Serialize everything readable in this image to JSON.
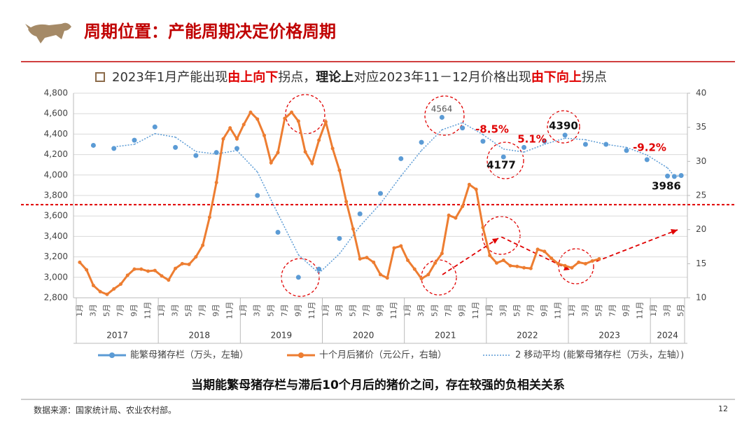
{
  "header": {
    "title": "周期位置：产能周期决定价格周期"
  },
  "chart_data": {
    "type": "line",
    "subtitle": [
      {
        "text": "2023年1月产能出现",
        "color": "#333333",
        "bold": false
      },
      {
        "text": "由上向下",
        "color": "#e00000",
        "bold": true
      },
      {
        "text": "拐点，",
        "color": "#333333",
        "bold": false
      },
      {
        "text": "理论上",
        "color": "#222222",
        "bold": true
      },
      {
        "text": "对应2023年11－12月价格出现",
        "color": "#333333",
        "bold": false
      },
      {
        "text": "由下向上",
        "color": "#e00000",
        "bold": true
      },
      {
        "text": "拐点",
        "color": "#333333",
        "bold": false
      }
    ],
    "categories": [
      "1月",
      null,
      "3月",
      null,
      "5月",
      null,
      "7月",
      null,
      "9月",
      null,
      "11月",
      null,
      "1月",
      null,
      "3月",
      null,
      "5月",
      null,
      "7月",
      null,
      "9月",
      null,
      "11月",
      null,
      "1月",
      null,
      "3月",
      null,
      "5月",
      null,
      "7月",
      null,
      "9月",
      null,
      "11月",
      null,
      "1月",
      null,
      "3月",
      null,
      "5月",
      null,
      "7月",
      null,
      "9月",
      null,
      "11月",
      null,
      "1月",
      null,
      "3月",
      null,
      "5月",
      null,
      "7月",
      null,
      "9月",
      null,
      "11月",
      null,
      "1月",
      null,
      "3月",
      null,
      "5月",
      null,
      "7月",
      null,
      "9月",
      null,
      "11月",
      null,
      "1月",
      null,
      "3月",
      null,
      "5月",
      null,
      "7月",
      null,
      "9月",
      null,
      "11月",
      null,
      "1月",
      null,
      "3月",
      null,
      "5月"
    ],
    "years": [
      "2017",
      "2018",
      "2019",
      "2020",
      "2021",
      "2022",
      "2023",
      "2024"
    ],
    "series": [
      {
        "name": "能繁母猪存栏（万头，左轴）",
        "color": "#5b9bd5",
        "style": "dots",
        "values": [
          null,
          null,
          4290,
          null,
          null,
          4260,
          null,
          null,
          4340,
          null,
          null,
          4470,
          null,
          null,
          4270,
          null,
          null,
          4190,
          null,
          null,
          4220,
          null,
          null,
          4260,
          null,
          null,
          3800,
          null,
          null,
          3440,
          null,
          null,
          3000,
          null,
          null,
          3080,
          null,
          null,
          3380,
          null,
          null,
          3620,
          null,
          null,
          3820,
          null,
          null,
          4160,
          null,
          null,
          4320,
          null,
          null,
          4564,
          null,
          null,
          4460,
          null,
          null,
          4330,
          null,
          null,
          4177,
          null,
          null,
          4270,
          null,
          null,
          4330,
          null,
          null,
          4390,
          null,
          null,
          4300,
          null,
          null,
          4300,
          null,
          null,
          4240,
          null,
          null,
          4150,
          null,
          null,
          3990,
          3986,
          3995
        ]
      },
      {
        "name": "十个月后猪价（元公斤，右轴）",
        "color": "#ed7d31",
        "style": "line",
        "axis": "y2",
        "values": [
          15.2,
          14.1,
          11.8,
          10.9,
          10.5,
          11.3,
          12.0,
          13.3,
          14.2,
          14.2,
          13.9,
          14.0,
          13.2,
          12.6,
          14.3,
          15.0,
          14.9,
          16.0,
          17.7,
          21.8,
          26.9,
          33.3,
          34.9,
          33.3,
          35.4,
          37.2,
          36.2,
          33.8,
          29.8,
          31.3,
          36.3,
          37.2,
          35.9,
          31.4,
          29.7,
          33.1,
          35.8,
          31.9,
          28.7,
          24.1,
          20.1,
          15.7,
          15.9,
          15.2,
          13.4,
          12.9,
          17.3,
          17.6,
          15.5,
          14.2,
          12.8,
          13.4,
          15.1,
          16.5,
          22.1,
          21.7,
          23.4,
          26.6,
          25.9,
          20.3,
          16.2,
          15.1,
          15.5,
          14.7,
          14.6,
          14.4,
          14.3,
          17.1,
          16.8,
          15.8,
          15.0,
          14.7,
          14.4,
          15.2,
          15.0,
          15.4,
          15.7,
          null,
          null,
          null,
          null,
          null,
          null,
          null,
          null,
          null,
          null,
          null,
          null
        ]
      },
      {
        "name": "2 移动平均 (能繁母猪存栏（万头，左轴）)",
        "color": "#5b9bd5",
        "style": "dotted",
        "values": [
          null,
          null,
          null,
          null,
          null,
          4275,
          null,
          null,
          4300,
          null,
          null,
          4405,
          null,
          null,
          4370,
          null,
          null,
          4230,
          null,
          null,
          4205,
          null,
          null,
          4240,
          null,
          null,
          4030,
          null,
          null,
          3620,
          null,
          null,
          3220,
          null,
          null,
          3040,
          null,
          null,
          3230,
          null,
          null,
          3500,
          null,
          null,
          3720,
          null,
          null,
          3990,
          null,
          null,
          4240,
          null,
          null,
          4442,
          null,
          null,
          4512,
          null,
          null,
          4395,
          null,
          null,
          4254,
          null,
          null,
          4224,
          null,
          null,
          4300,
          null,
          null,
          4360,
          null,
          null,
          4345,
          null,
          null,
          4300,
          null,
          null,
          4270,
          null,
          null,
          4195,
          null,
          null,
          4070,
          3988,
          3991
        ]
      }
    ],
    "ylim": [
      2800,
      4800
    ],
    "yticks": [
      {
        "value": 2800,
        "label": "2,800"
      },
      {
        "value": 3000,
        "label": "3,000"
      },
      {
        "value": 3200,
        "label": "3,200"
      },
      {
        "value": 3400,
        "label": "3,400"
      },
      {
        "value": 3600,
        "label": "3,600"
      },
      {
        "value": 3800,
        "label": "3,800"
      },
      {
        "value": 4000,
        "label": "4,000"
      },
      {
        "value": 4200,
        "label": "4,200"
      },
      {
        "value": 4400,
        "label": "4,400"
      },
      {
        "value": 4600,
        "label": "4,600"
      },
      {
        "value": 4800,
        "label": "4,800"
      }
    ],
    "y2lim": [
      10,
      40
    ],
    "y2ticks": [
      10,
      15,
      20,
      25,
      30,
      35,
      40
    ],
    "grid": true,
    "reference_line": {
      "value": 3710,
      "color": "#e00000"
    },
    "annotations": [
      {
        "text": "4564",
        "color": "#555555"
      },
      {
        "text": "-8.5%",
        "color": "#e00000"
      },
      {
        "text": "5.1%",
        "color": "#e00000"
      },
      {
        "text": "4177",
        "color": "#111111"
      },
      {
        "text": "4390",
        "color": "#111111"
      },
      {
        "text": "-9.2%",
        "color": "#e00000"
      },
      {
        "text": "3986",
        "color": "#111111"
      }
    ],
    "conclusion": "当期能繁母猪存栏与滞后10个月后的猪价之间，存在较强的负相关关系"
  },
  "footer": {
    "source": "数据来源：国家统计局、农业农村部。",
    "page": "12"
  }
}
